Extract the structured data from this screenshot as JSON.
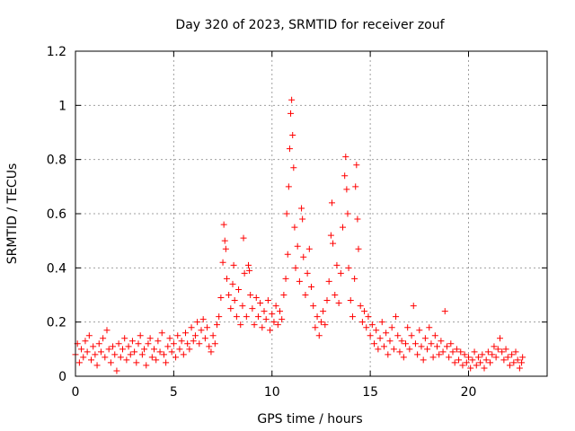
{
  "chart_data": {
    "type": "scatter",
    "title": "Day 320 of 2023, SRMTID for receiver zouf",
    "xlabel": "GPS time / hours",
    "ylabel": "SRMTID / TECUs",
    "xlim": [
      0,
      24
    ],
    "ylim": [
      0,
      1.2
    ],
    "xticks": [
      0,
      5,
      10,
      15,
      20
    ],
    "xtick_labels": [
      "0",
      "5",
      "10",
      "15",
      "20"
    ],
    "yticks": [
      0,
      0.2,
      0.4,
      0.6,
      0.8,
      1.0,
      1.2
    ],
    "ytick_labels": [
      "0",
      "0.2",
      "0.4",
      "0.6",
      "0.8",
      "1",
      "1.2"
    ],
    "grid": true,
    "marker": "+",
    "color": "#ff0000",
    "series": [
      {
        "name": "SRMTID",
        "points": [
          [
            0.0,
            0.08
          ],
          [
            0.1,
            0.12
          ],
          [
            0.2,
            0.05
          ],
          [
            0.3,
            0.1
          ],
          [
            0.4,
            0.07
          ],
          [
            0.5,
            0.13
          ],
          [
            0.6,
            0.09
          ],
          [
            0.7,
            0.15
          ],
          [
            0.8,
            0.06
          ],
          [
            0.9,
            0.11
          ],
          [
            1.0,
            0.08
          ],
          [
            1.1,
            0.04
          ],
          [
            1.2,
            0.12
          ],
          [
            1.3,
            0.09
          ],
          [
            1.4,
            0.14
          ],
          [
            1.5,
            0.07
          ],
          [
            1.6,
            0.17
          ],
          [
            1.7,
            0.1
          ],
          [
            1.8,
            0.05
          ],
          [
            1.9,
            0.11
          ],
          [
            2.0,
            0.08
          ],
          [
            2.1,
            0.02
          ],
          [
            2.2,
            0.12
          ],
          [
            2.3,
            0.07
          ],
          [
            2.4,
            0.1
          ],
          [
            2.5,
            0.14
          ],
          [
            2.6,
            0.06
          ],
          [
            2.7,
            0.11
          ],
          [
            2.8,
            0.08
          ],
          [
            2.9,
            0.13
          ],
          [
            3.0,
            0.09
          ],
          [
            3.1,
            0.05
          ],
          [
            3.2,
            0.12
          ],
          [
            3.3,
            0.15
          ],
          [
            3.4,
            0.08
          ],
          [
            3.5,
            0.1
          ],
          [
            3.6,
            0.04
          ],
          [
            3.7,
            0.12
          ],
          [
            3.8,
            0.14
          ],
          [
            3.9,
            0.07
          ],
          [
            4.0,
            0.1
          ],
          [
            4.1,
            0.06
          ],
          [
            4.2,
            0.13
          ],
          [
            4.3,
            0.09
          ],
          [
            4.4,
            0.16
          ],
          [
            4.5,
            0.08
          ],
          [
            4.6,
            0.05
          ],
          [
            4.7,
            0.11
          ],
          [
            4.8,
            0.14
          ],
          [
            4.9,
            0.09
          ],
          [
            5.0,
            0.12
          ],
          [
            5.1,
            0.07
          ],
          [
            5.2,
            0.15
          ],
          [
            5.3,
            0.1
          ],
          [
            5.4,
            0.13
          ],
          [
            5.5,
            0.08
          ],
          [
            5.6,
            0.16
          ],
          [
            5.7,
            0.12
          ],
          [
            5.8,
            0.1
          ],
          [
            5.9,
            0.18
          ],
          [
            6.0,
            0.13
          ],
          [
            6.1,
            0.15
          ],
          [
            6.2,
            0.2
          ],
          [
            6.3,
            0.12
          ],
          [
            6.4,
            0.17
          ],
          [
            6.5,
            0.21
          ],
          [
            6.6,
            0.14
          ],
          [
            6.7,
            0.18
          ],
          [
            6.8,
            0.11
          ],
          [
            6.9,
            0.09
          ],
          [
            7.0,
            0.15
          ],
          [
            7.1,
            0.12
          ],
          [
            7.2,
            0.19
          ],
          [
            7.3,
            0.22
          ],
          [
            7.4,
            0.29
          ],
          [
            7.5,
            0.42
          ],
          [
            7.55,
            0.56
          ],
          [
            7.6,
            0.5
          ],
          [
            7.65,
            0.47
          ],
          [
            7.7,
            0.36
          ],
          [
            7.8,
            0.3
          ],
          [
            7.9,
            0.25
          ],
          [
            8.0,
            0.34
          ],
          [
            8.05,
            0.41
          ],
          [
            8.1,
            0.28
          ],
          [
            8.2,
            0.22
          ],
          [
            8.3,
            0.32
          ],
          [
            8.4,
            0.19
          ],
          [
            8.5,
            0.26
          ],
          [
            8.55,
            0.51
          ],
          [
            8.6,
            0.38
          ],
          [
            8.7,
            0.22
          ],
          [
            8.8,
            0.41
          ],
          [
            8.85,
            0.39
          ],
          [
            8.9,
            0.3
          ],
          [
            9.0,
            0.25
          ],
          [
            9.1,
            0.19
          ],
          [
            9.2,
            0.29
          ],
          [
            9.3,
            0.22
          ],
          [
            9.4,
            0.27
          ],
          [
            9.5,
            0.18
          ],
          [
            9.6,
            0.24
          ],
          [
            9.7,
            0.21
          ],
          [
            9.8,
            0.28
          ],
          [
            9.9,
            0.17
          ],
          [
            10.0,
            0.23
          ],
          [
            10.1,
            0.2
          ],
          [
            10.2,
            0.26
          ],
          [
            10.3,
            0.19
          ],
          [
            10.4,
            0.24
          ],
          [
            10.5,
            0.21
          ],
          [
            10.6,
            0.3
          ],
          [
            10.7,
            0.36
          ],
          [
            10.75,
            0.6
          ],
          [
            10.8,
            0.45
          ],
          [
            10.85,
            0.7
          ],
          [
            10.9,
            0.84
          ],
          [
            10.95,
            0.97
          ],
          [
            11.0,
            1.02
          ],
          [
            11.05,
            0.89
          ],
          [
            11.1,
            0.77
          ],
          [
            11.15,
            0.55
          ],
          [
            11.2,
            0.4
          ],
          [
            11.3,
            0.48
          ],
          [
            11.4,
            0.35
          ],
          [
            11.5,
            0.62
          ],
          [
            11.55,
            0.58
          ],
          [
            11.6,
            0.44
          ],
          [
            11.7,
            0.3
          ],
          [
            11.8,
            0.38
          ],
          [
            11.9,
            0.47
          ],
          [
            12.0,
            0.33
          ],
          [
            12.1,
            0.26
          ],
          [
            12.2,
            0.18
          ],
          [
            12.3,
            0.22
          ],
          [
            12.4,
            0.15
          ],
          [
            12.5,
            0.2
          ],
          [
            12.6,
            0.24
          ],
          [
            12.7,
            0.19
          ],
          [
            12.8,
            0.28
          ],
          [
            12.9,
            0.35
          ],
          [
            13.0,
            0.52
          ],
          [
            13.05,
            0.64
          ],
          [
            13.1,
            0.49
          ],
          [
            13.2,
            0.3
          ],
          [
            13.3,
            0.41
          ],
          [
            13.4,
            0.27
          ],
          [
            13.5,
            0.38
          ],
          [
            13.6,
            0.55
          ],
          [
            13.7,
            0.74
          ],
          [
            13.75,
            0.81
          ],
          [
            13.8,
            0.69
          ],
          [
            13.85,
            0.6
          ],
          [
            13.9,
            0.4
          ],
          [
            14.0,
            0.28
          ],
          [
            14.1,
            0.22
          ],
          [
            14.2,
            0.36
          ],
          [
            14.25,
            0.7
          ],
          [
            14.3,
            0.78
          ],
          [
            14.35,
            0.58
          ],
          [
            14.4,
            0.47
          ],
          [
            14.5,
            0.26
          ],
          [
            14.6,
            0.2
          ],
          [
            14.7,
            0.24
          ],
          [
            14.8,
            0.18
          ],
          [
            14.9,
            0.22
          ],
          [
            15.0,
            0.15
          ],
          [
            15.1,
            0.19
          ],
          [
            15.2,
            0.12
          ],
          [
            15.3,
            0.17
          ],
          [
            15.4,
            0.1
          ],
          [
            15.5,
            0.14
          ],
          [
            15.6,
            0.2
          ],
          [
            15.7,
            0.11
          ],
          [
            15.8,
            0.16
          ],
          [
            15.9,
            0.08
          ],
          [
            16.0,
            0.13
          ],
          [
            16.1,
            0.18
          ],
          [
            16.2,
            0.1
          ],
          [
            16.3,
            0.22
          ],
          [
            16.4,
            0.15
          ],
          [
            16.5,
            0.09
          ],
          [
            16.6,
            0.13
          ],
          [
            16.7,
            0.07
          ],
          [
            16.8,
            0.12
          ],
          [
            16.9,
            0.18
          ],
          [
            17.0,
            0.1
          ],
          [
            17.1,
            0.15
          ],
          [
            17.2,
            0.26
          ],
          [
            17.3,
            0.12
          ],
          [
            17.4,
            0.08
          ],
          [
            17.5,
            0.17
          ],
          [
            17.6,
            0.11
          ],
          [
            17.7,
            0.06
          ],
          [
            17.8,
            0.14
          ],
          [
            17.9,
            0.1
          ],
          [
            18.0,
            0.18
          ],
          [
            18.1,
            0.12
          ],
          [
            18.2,
            0.07
          ],
          [
            18.3,
            0.15
          ],
          [
            18.4,
            0.11
          ],
          [
            18.5,
            0.08
          ],
          [
            18.6,
            0.13
          ],
          [
            18.7,
            0.09
          ],
          [
            18.8,
            0.24
          ],
          [
            18.9,
            0.11
          ],
          [
            19.0,
            0.07
          ],
          [
            19.1,
            0.12
          ],
          [
            19.2,
            0.09
          ],
          [
            19.3,
            0.05
          ],
          [
            19.4,
            0.1
          ],
          [
            19.5,
            0.06
          ],
          [
            19.6,
            0.09
          ],
          [
            19.7,
            0.04
          ],
          [
            19.8,
            0.08
          ],
          [
            19.9,
            0.05
          ],
          [
            20.0,
            0.07
          ],
          [
            20.1,
            0.03
          ],
          [
            20.2,
            0.06
          ],
          [
            20.3,
            0.09
          ],
          [
            20.4,
            0.04
          ],
          [
            20.5,
            0.07
          ],
          [
            20.6,
            0.05
          ],
          [
            20.7,
            0.08
          ],
          [
            20.8,
            0.03
          ],
          [
            20.9,
            0.06
          ],
          [
            21.0,
            0.09
          ],
          [
            21.1,
            0.05
          ],
          [
            21.2,
            0.08
          ],
          [
            21.3,
            0.11
          ],
          [
            21.4,
            0.07
          ],
          [
            21.5,
            0.1
          ],
          [
            21.6,
            0.14
          ],
          [
            21.7,
            0.09
          ],
          [
            21.8,
            0.06
          ],
          [
            21.9,
            0.1
          ],
          [
            22.0,
            0.07
          ],
          [
            22.1,
            0.04
          ],
          [
            22.2,
            0.08
          ],
          [
            22.3,
            0.05
          ],
          [
            22.4,
            0.09
          ],
          [
            22.5,
            0.06
          ],
          [
            22.6,
            0.03
          ],
          [
            22.7,
            0.05
          ],
          [
            22.75,
            0.07
          ]
        ]
      }
    ]
  }
}
